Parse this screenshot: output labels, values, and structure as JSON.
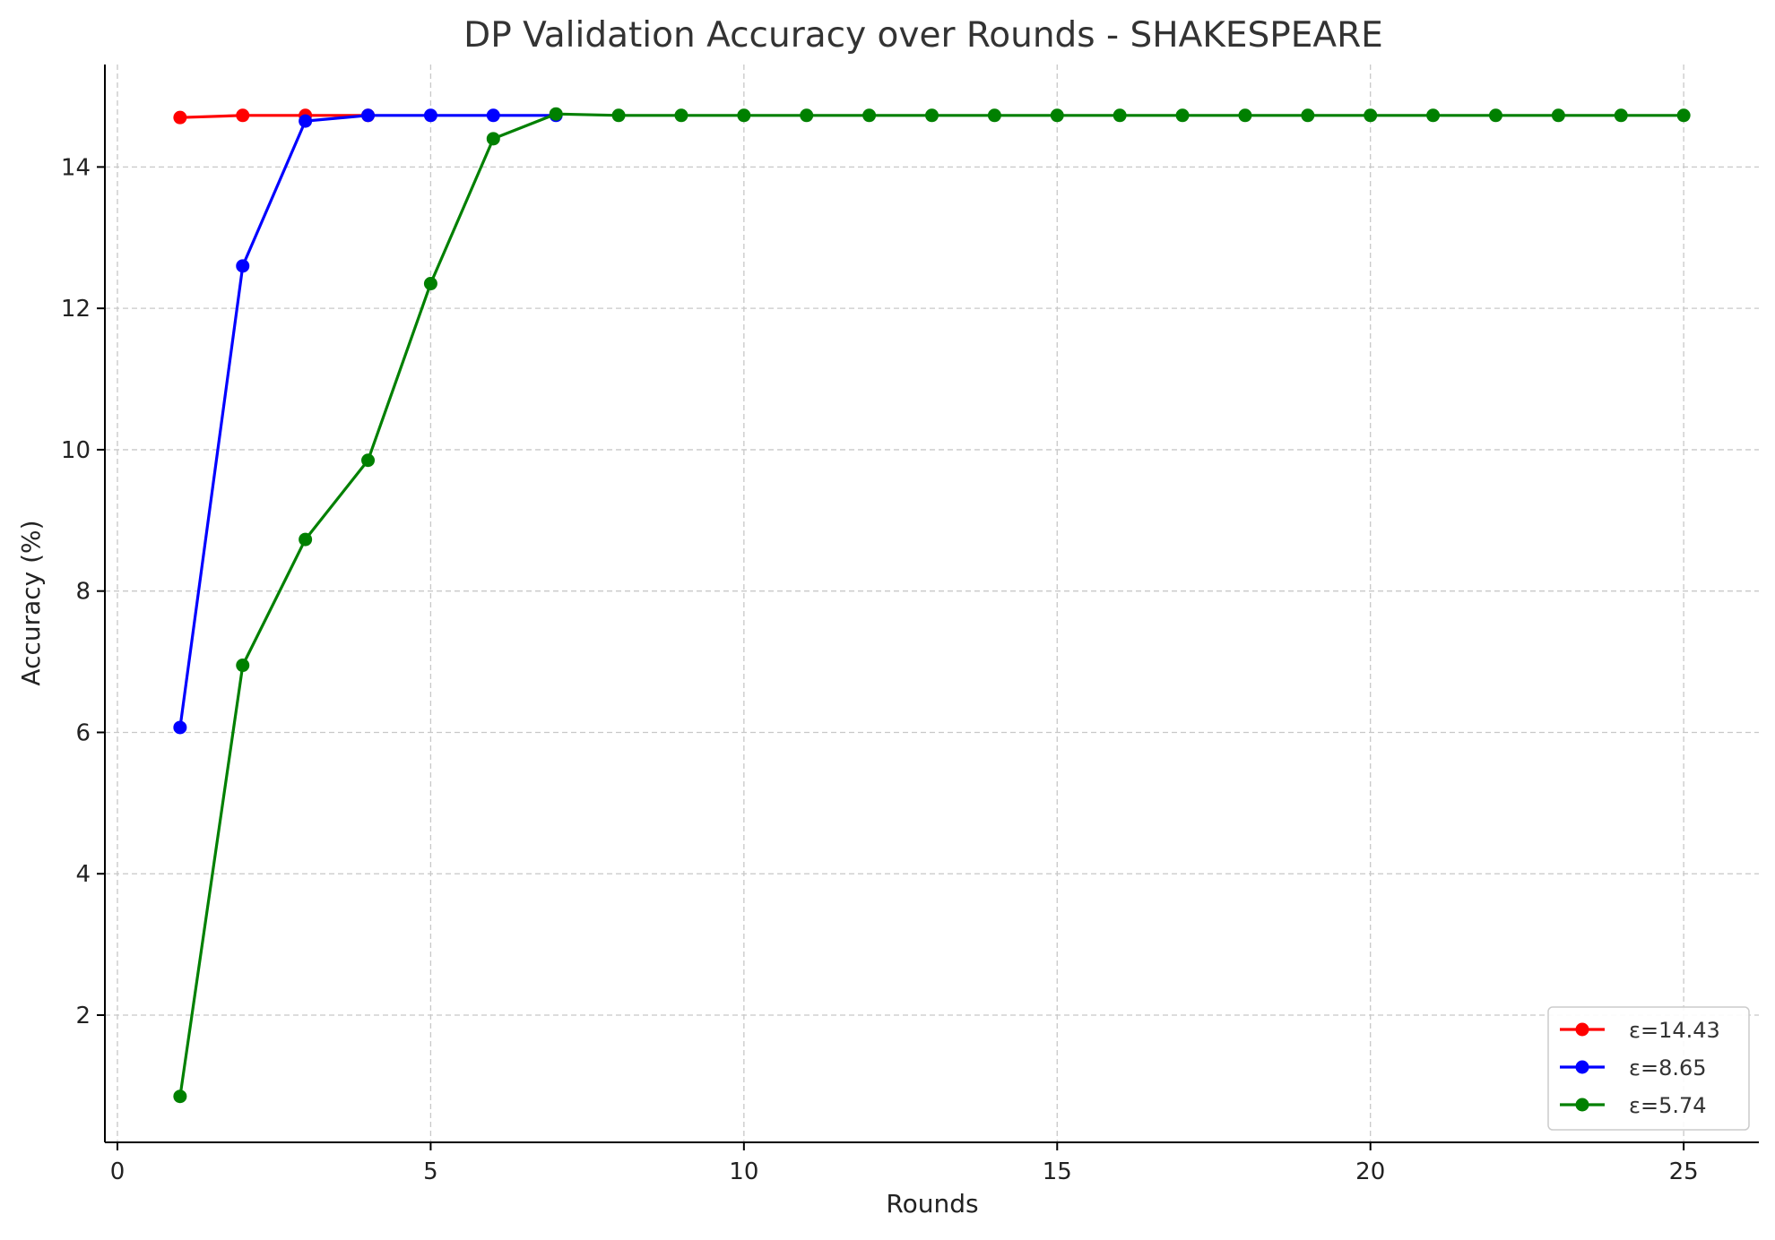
{
  "chart_data": {
    "type": "line",
    "title": "DP Validation Accuracy over Rounds - SHAKESPEARE",
    "xlabel": "Rounds",
    "ylabel": "Accuracy (%)",
    "xlim": [
      -0.2,
      26.2
    ],
    "ylim": [
      0.2,
      15.45
    ],
    "xticks": [
      0,
      5,
      10,
      15,
      20,
      25
    ],
    "yticks": [
      2,
      4,
      6,
      8,
      10,
      12,
      14
    ],
    "grid": true,
    "legend_position": "bottom-right",
    "series": [
      {
        "name": "ε=14.43",
        "color": "#ff0000",
        "x": [
          1,
          2,
          3,
          4
        ],
        "y": [
          14.7,
          14.73,
          14.73,
          14.73
        ]
      },
      {
        "name": "ε=8.65",
        "color": "#0000ff",
        "x": [
          1,
          2,
          3,
          4,
          5,
          6,
          7
        ],
        "y": [
          6.07,
          12.6,
          14.65,
          14.73,
          14.73,
          14.73,
          14.73
        ]
      },
      {
        "name": "ε=5.74",
        "color": "#008000",
        "x": [
          1,
          2,
          3,
          4,
          5,
          6,
          7,
          8,
          9,
          10,
          11,
          12,
          13,
          14,
          15,
          16,
          17,
          18,
          19,
          20,
          21,
          22,
          23,
          24,
          25
        ],
        "y": [
          0.85,
          6.95,
          8.73,
          9.85,
          12.35,
          14.4,
          14.75,
          14.73,
          14.73,
          14.73,
          14.73,
          14.73,
          14.73,
          14.73,
          14.73,
          14.73,
          14.73,
          14.73,
          14.73,
          14.73,
          14.73,
          14.73,
          14.73,
          14.73,
          14.73
        ]
      }
    ]
  }
}
